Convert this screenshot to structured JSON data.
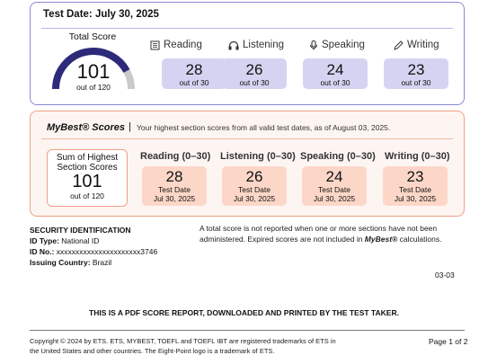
{
  "test": {
    "date": "Test Date: July 30, 2025",
    "total_label": "Total Score",
    "total": "101",
    "total_out": "out of 120",
    "total_fraction": 0.842,
    "sections": [
      {
        "label": "Reading",
        "icon": "book-icon",
        "score": "28",
        "out": "out of 30"
      },
      {
        "label": "Listening",
        "icon": "headphones-icon",
        "score": "26",
        "out": "out of 30"
      },
      {
        "label": "Speaking",
        "icon": "microphone-icon",
        "score": "24",
        "out": "out of 30"
      },
      {
        "label": "Writing",
        "icon": "pencil-icon",
        "score": "23",
        "out": "out of 30"
      }
    ]
  },
  "mybest": {
    "title": "MyBest® Scores",
    "separator": "|",
    "desc": "Your highest section scores from all valid test dates, as of August 03, 2025.",
    "sum_line1": "Sum of Highest",
    "sum_line2": "Section Scores",
    "sum": "101",
    "sum_out": "out of 120",
    "sections": [
      {
        "label": "Reading (0–30)",
        "score": "28",
        "td": "Test Date",
        "date": "Jul 30, 2025"
      },
      {
        "label": "Listening (0–30)",
        "score": "26",
        "td": "Test Date",
        "date": "Jul 30, 2025"
      },
      {
        "label": "Speaking (0–30)",
        "score": "24",
        "td": "Test Date",
        "date": "Jul 30, 2025"
      },
      {
        "label": "Writing (0–30)",
        "score": "23",
        "td": "Test Date",
        "date": "Jul 30, 2025"
      }
    ]
  },
  "security": {
    "heading": "SECURITY IDENTIFICATION",
    "id_type_label": "ID Type:",
    "id_type": "National ID",
    "id_no_label": "ID No.:",
    "id_no": "xxxxxxxxxxxxxxxxxxxxxx3746",
    "country_label": "Issuing Country:",
    "country": "Brazil"
  },
  "note": {
    "text1": "A total score is not reported when one or more sections have not been administered. Expired scores are not included in ",
    "brand": "MyBest®",
    "text2": " calculations."
  },
  "page_code": "03-03",
  "pdf_note": "THIS IS A PDF SCORE REPORT, DOWNLOADED AND PRINTED BY THE TEST TAKER.",
  "footer": {
    "copyright": "Copyright © 2024 by ETS. ETS, MYBEST, TOEFL and TOEFL IBT are registered trademarks of ETS in the United States and other countries. The Eight-Point logo is a trademark of ETS.",
    "page": "Page 1 of 2"
  },
  "colors": {
    "indigo": "#2e2a7a",
    "test_box": "#d4d4f2",
    "best_box": "#fcd7c8",
    "test_border": "#8a88d6",
    "best_border": "#f0a083"
  }
}
